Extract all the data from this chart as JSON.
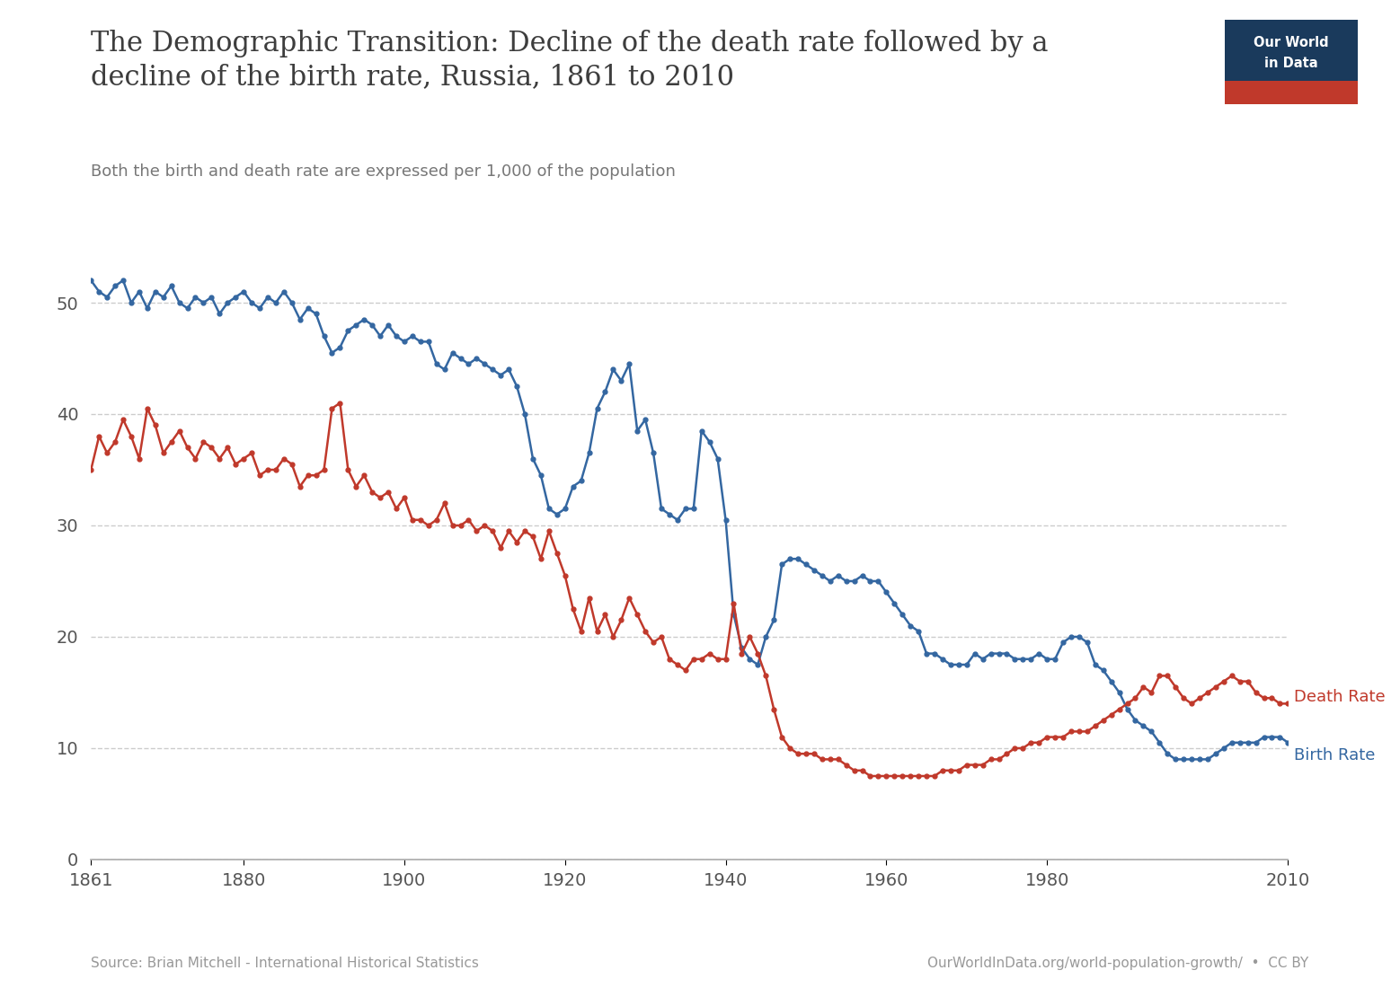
{
  "title_line1": "The Demographic Transition: Decline of the death rate followed by a",
  "title_line2": "decline of the birth rate, Russia, 1861 to 2010",
  "subtitle": "Both the birth and death rate are expressed per 1,000 of the population",
  "source_left": "Source: Brian Mitchell - International Historical Statistics",
  "source_right": "OurWorldInData.org/world-population-growth/  •  CC BY",
  "logo_text1": "Our World",
  "logo_text2": "in Data",
  "logo_bg": "#1a3a5c",
  "logo_stripe": "#c0392b",
  "birth_color": "#3467a1",
  "death_color": "#c0392b",
  "xlim": [
    1861,
    2010
  ],
  "ylim": [
    0,
    55
  ],
  "yticks": [
    0,
    10,
    20,
    30,
    40,
    50
  ],
  "xticks": [
    1861,
    1880,
    1900,
    1920,
    1940,
    1960,
    1980,
    2010
  ],
  "birth_data": [
    [
      1861,
      52.0
    ],
    [
      1862,
      51.0
    ],
    [
      1863,
      50.5
    ],
    [
      1864,
      51.5
    ],
    [
      1865,
      52.0
    ],
    [
      1866,
      50.0
    ],
    [
      1867,
      51.0
    ],
    [
      1868,
      49.5
    ],
    [
      1869,
      51.0
    ],
    [
      1870,
      50.5
    ],
    [
      1871,
      51.5
    ],
    [
      1872,
      50.0
    ],
    [
      1873,
      49.5
    ],
    [
      1874,
      50.5
    ],
    [
      1875,
      50.0
    ],
    [
      1876,
      50.5
    ],
    [
      1877,
      49.0
    ],
    [
      1878,
      50.0
    ],
    [
      1879,
      50.5
    ],
    [
      1880,
      51.0
    ],
    [
      1881,
      50.0
    ],
    [
      1882,
      49.5
    ],
    [
      1883,
      50.5
    ],
    [
      1884,
      50.0
    ],
    [
      1885,
      51.0
    ],
    [
      1886,
      50.0
    ],
    [
      1887,
      48.5
    ],
    [
      1888,
      49.5
    ],
    [
      1889,
      49.0
    ],
    [
      1890,
      47.0
    ],
    [
      1891,
      45.5
    ],
    [
      1892,
      46.0
    ],
    [
      1893,
      47.5
    ],
    [
      1894,
      48.0
    ],
    [
      1895,
      48.5
    ],
    [
      1896,
      48.0
    ],
    [
      1897,
      47.0
    ],
    [
      1898,
      48.0
    ],
    [
      1899,
      47.0
    ],
    [
      1900,
      46.5
    ],
    [
      1901,
      47.0
    ],
    [
      1902,
      46.5
    ],
    [
      1903,
      46.5
    ],
    [
      1904,
      44.5
    ],
    [
      1905,
      44.0
    ],
    [
      1906,
      45.5
    ],
    [
      1907,
      45.0
    ],
    [
      1908,
      44.5
    ],
    [
      1909,
      45.0
    ],
    [
      1910,
      44.5
    ],
    [
      1911,
      44.0
    ],
    [
      1912,
      43.5
    ],
    [
      1913,
      44.0
    ],
    [
      1914,
      42.5
    ],
    [
      1915,
      40.0
    ],
    [
      1916,
      36.0
    ],
    [
      1917,
      34.5
    ],
    [
      1918,
      31.5
    ],
    [
      1919,
      31.0
    ],
    [
      1920,
      31.5
    ],
    [
      1921,
      33.5
    ],
    [
      1922,
      34.0
    ],
    [
      1923,
      36.5
    ],
    [
      1924,
      40.5
    ],
    [
      1925,
      42.0
    ],
    [
      1926,
      44.0
    ],
    [
      1927,
      43.0
    ],
    [
      1928,
      44.5
    ],
    [
      1929,
      38.5
    ],
    [
      1930,
      39.5
    ],
    [
      1931,
      36.5
    ],
    [
      1932,
      31.5
    ],
    [
      1933,
      31.0
    ],
    [
      1934,
      30.5
    ],
    [
      1935,
      31.5
    ],
    [
      1936,
      31.5
    ],
    [
      1937,
      38.5
    ],
    [
      1938,
      37.5
    ],
    [
      1939,
      36.0
    ],
    [
      1940,
      30.5
    ],
    [
      1941,
      22.0
    ],
    [
      1942,
      19.0
    ],
    [
      1943,
      18.0
    ],
    [
      1944,
      17.5
    ],
    [
      1945,
      20.0
    ],
    [
      1946,
      21.5
    ],
    [
      1947,
      26.5
    ],
    [
      1948,
      27.0
    ],
    [
      1949,
      27.0
    ],
    [
      1950,
      26.5
    ],
    [
      1951,
      26.0
    ],
    [
      1952,
      25.5
    ],
    [
      1953,
      25.0
    ],
    [
      1954,
      25.5
    ],
    [
      1955,
      25.0
    ],
    [
      1956,
      25.0
    ],
    [
      1957,
      25.5
    ],
    [
      1958,
      25.0
    ],
    [
      1959,
      25.0
    ],
    [
      1960,
      24.0
    ],
    [
      1961,
      23.0
    ],
    [
      1962,
      22.0
    ],
    [
      1963,
      21.0
    ],
    [
      1964,
      20.5
    ],
    [
      1965,
      18.5
    ],
    [
      1966,
      18.5
    ],
    [
      1967,
      18.0
    ],
    [
      1968,
      17.5
    ],
    [
      1969,
      17.5
    ],
    [
      1970,
      17.5
    ],
    [
      1971,
      18.5
    ],
    [
      1972,
      18.0
    ],
    [
      1973,
      18.5
    ],
    [
      1974,
      18.5
    ],
    [
      1975,
      18.5
    ],
    [
      1976,
      18.0
    ],
    [
      1977,
      18.0
    ],
    [
      1978,
      18.0
    ],
    [
      1979,
      18.5
    ],
    [
      1980,
      18.0
    ],
    [
      1981,
      18.0
    ],
    [
      1982,
      19.5
    ],
    [
      1983,
      20.0
    ],
    [
      1984,
      20.0
    ],
    [
      1985,
      19.5
    ],
    [
      1986,
      17.5
    ],
    [
      1987,
      17.0
    ],
    [
      1988,
      16.0
    ],
    [
      1989,
      15.0
    ],
    [
      1990,
      13.5
    ],
    [
      1991,
      12.5
    ],
    [
      1992,
      12.0
    ],
    [
      1993,
      11.5
    ],
    [
      1994,
      10.5
    ],
    [
      1995,
      9.5
    ],
    [
      1996,
      9.0
    ],
    [
      1997,
      9.0
    ],
    [
      1998,
      9.0
    ],
    [
      1999,
      9.0
    ],
    [
      2000,
      9.0
    ],
    [
      2001,
      9.5
    ],
    [
      2002,
      10.0
    ],
    [
      2003,
      10.5
    ],
    [
      2004,
      10.5
    ],
    [
      2005,
      10.5
    ],
    [
      2006,
      10.5
    ],
    [
      2007,
      11.0
    ],
    [
      2008,
      11.0
    ],
    [
      2009,
      11.0
    ],
    [
      2010,
      10.5
    ]
  ],
  "death_data": [
    [
      1861,
      35.0
    ],
    [
      1862,
      38.0
    ],
    [
      1863,
      36.5
    ],
    [
      1864,
      37.5
    ],
    [
      1865,
      39.5
    ],
    [
      1866,
      38.0
    ],
    [
      1867,
      36.0
    ],
    [
      1868,
      40.5
    ],
    [
      1869,
      39.0
    ],
    [
      1870,
      36.5
    ],
    [
      1871,
      37.5
    ],
    [
      1872,
      38.5
    ],
    [
      1873,
      37.0
    ],
    [
      1874,
      36.0
    ],
    [
      1875,
      37.5
    ],
    [
      1876,
      37.0
    ],
    [
      1877,
      36.0
    ],
    [
      1878,
      37.0
    ],
    [
      1879,
      35.5
    ],
    [
      1880,
      36.0
    ],
    [
      1881,
      36.5
    ],
    [
      1882,
      34.5
    ],
    [
      1883,
      35.0
    ],
    [
      1884,
      35.0
    ],
    [
      1885,
      36.0
    ],
    [
      1886,
      35.5
    ],
    [
      1887,
      33.5
    ],
    [
      1888,
      34.5
    ],
    [
      1889,
      34.5
    ],
    [
      1890,
      35.0
    ],
    [
      1891,
      40.5
    ],
    [
      1892,
      41.0
    ],
    [
      1893,
      35.0
    ],
    [
      1894,
      33.5
    ],
    [
      1895,
      34.5
    ],
    [
      1896,
      33.0
    ],
    [
      1897,
      32.5
    ],
    [
      1898,
      33.0
    ],
    [
      1899,
      31.5
    ],
    [
      1900,
      32.5
    ],
    [
      1901,
      30.5
    ],
    [
      1902,
      30.5
    ],
    [
      1903,
      30.0
    ],
    [
      1904,
      30.5
    ],
    [
      1905,
      32.0
    ],
    [
      1906,
      30.0
    ],
    [
      1907,
      30.0
    ],
    [
      1908,
      30.5
    ],
    [
      1909,
      29.5
    ],
    [
      1910,
      30.0
    ],
    [
      1911,
      29.5
    ],
    [
      1912,
      28.0
    ],
    [
      1913,
      29.5
    ],
    [
      1914,
      28.5
    ],
    [
      1915,
      29.5
    ],
    [
      1916,
      29.0
    ],
    [
      1917,
      27.0
    ],
    [
      1918,
      29.5
    ],
    [
      1919,
      27.5
    ],
    [
      1920,
      25.5
    ],
    [
      1921,
      22.5
    ],
    [
      1922,
      20.5
    ],
    [
      1923,
      23.5
    ],
    [
      1924,
      20.5
    ],
    [
      1925,
      22.0
    ],
    [
      1926,
      20.0
    ],
    [
      1927,
      21.5
    ],
    [
      1928,
      23.5
    ],
    [
      1929,
      22.0
    ],
    [
      1930,
      20.5
    ],
    [
      1931,
      19.5
    ],
    [
      1932,
      20.0
    ],
    [
      1933,
      18.0
    ],
    [
      1934,
      17.5
    ],
    [
      1935,
      17.0
    ],
    [
      1936,
      18.0
    ],
    [
      1937,
      18.0
    ],
    [
      1938,
      18.5
    ],
    [
      1939,
      18.0
    ],
    [
      1940,
      18.0
    ],
    [
      1941,
      23.0
    ],
    [
      1942,
      18.5
    ],
    [
      1943,
      20.0
    ],
    [
      1944,
      18.5
    ],
    [
      1945,
      16.5
    ],
    [
      1946,
      13.5
    ],
    [
      1947,
      11.0
    ],
    [
      1948,
      10.0
    ],
    [
      1949,
      9.5
    ],
    [
      1950,
      9.5
    ],
    [
      1951,
      9.5
    ],
    [
      1952,
      9.0
    ],
    [
      1953,
      9.0
    ],
    [
      1954,
      9.0
    ],
    [
      1955,
      8.5
    ],
    [
      1956,
      8.0
    ],
    [
      1957,
      8.0
    ],
    [
      1958,
      7.5
    ],
    [
      1959,
      7.5
    ],
    [
      1960,
      7.5
    ],
    [
      1961,
      7.5
    ],
    [
      1962,
      7.5
    ],
    [
      1963,
      7.5
    ],
    [
      1964,
      7.5
    ],
    [
      1965,
      7.5
    ],
    [
      1966,
      7.5
    ],
    [
      1967,
      8.0
    ],
    [
      1968,
      8.0
    ],
    [
      1969,
      8.0
    ],
    [
      1970,
      8.5
    ],
    [
      1971,
      8.5
    ],
    [
      1972,
      8.5
    ],
    [
      1973,
      9.0
    ],
    [
      1974,
      9.0
    ],
    [
      1975,
      9.5
    ],
    [
      1976,
      10.0
    ],
    [
      1977,
      10.0
    ],
    [
      1978,
      10.5
    ],
    [
      1979,
      10.5
    ],
    [
      1980,
      11.0
    ],
    [
      1981,
      11.0
    ],
    [
      1982,
      11.0
    ],
    [
      1983,
      11.5
    ],
    [
      1984,
      11.5
    ],
    [
      1985,
      11.5
    ],
    [
      1986,
      12.0
    ],
    [
      1987,
      12.5
    ],
    [
      1988,
      13.0
    ],
    [
      1989,
      13.5
    ],
    [
      1990,
      14.0
    ],
    [
      1991,
      14.5
    ],
    [
      1992,
      15.5
    ],
    [
      1993,
      15.0
    ],
    [
      1994,
      16.5
    ],
    [
      1995,
      16.5
    ],
    [
      1996,
      15.5
    ],
    [
      1997,
      14.5
    ],
    [
      1998,
      14.0
    ],
    [
      1999,
      14.5
    ],
    [
      2000,
      15.0
    ],
    [
      2001,
      15.5
    ],
    [
      2002,
      16.0
    ],
    [
      2003,
      16.5
    ],
    [
      2004,
      16.0
    ],
    [
      2005,
      16.0
    ],
    [
      2006,
      15.0
    ],
    [
      2007,
      14.5
    ],
    [
      2008,
      14.5
    ],
    [
      2009,
      14.0
    ],
    [
      2010,
      14.0
    ]
  ]
}
